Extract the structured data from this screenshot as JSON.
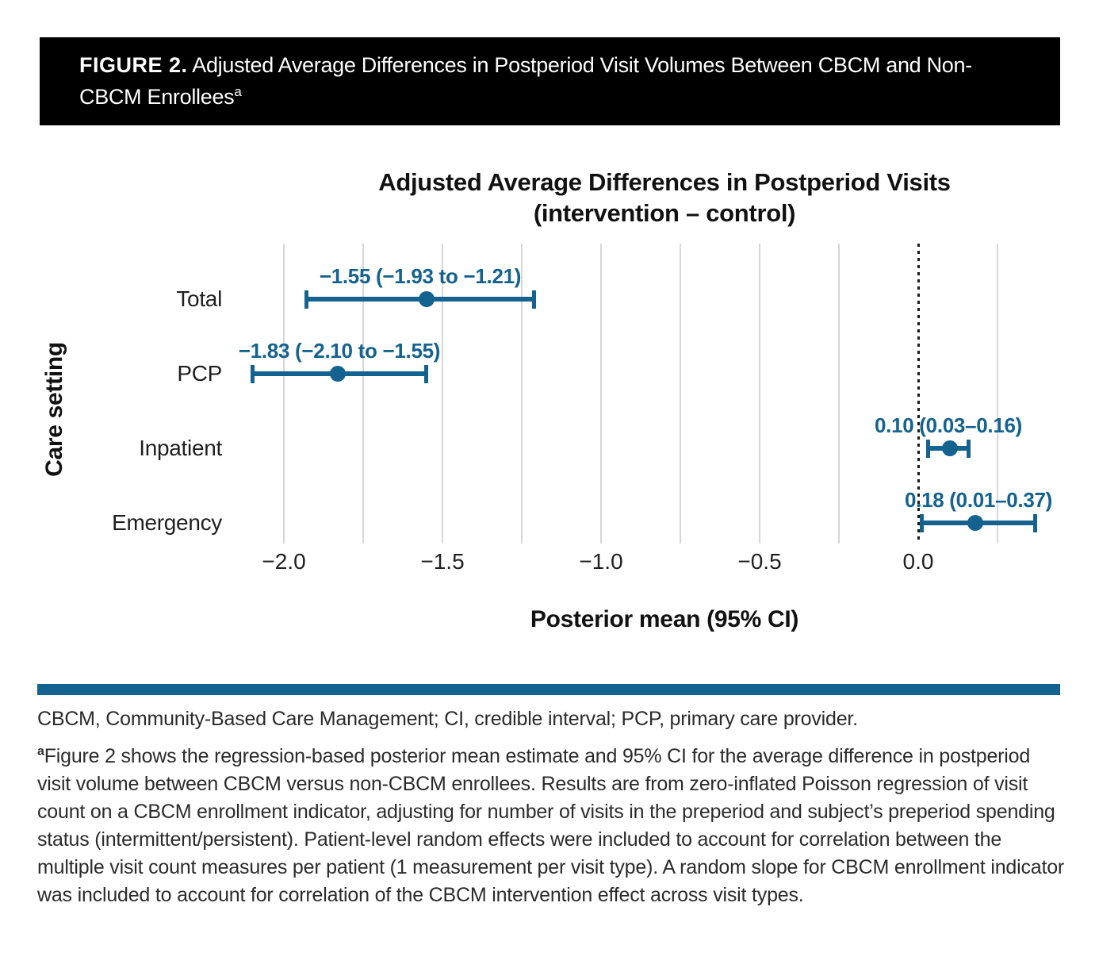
{
  "figure_header": {
    "label": "FIGURE 2.",
    "title": " Adjusted Average Differences in Postperiod Visit Volumes Between CBCM and Non-CBCM Enrollees",
    "superscript": "a"
  },
  "chart_data": {
    "type": "scatter",
    "subtype": "forest-plot-errorbar",
    "title": "Adjusted Average Differences in Postperiod Visits",
    "subtitle": "(intervention – control)",
    "xlabel": "Posterior mean (95% CI)",
    "ylabel": "Care setting",
    "categories": [
      "Total",
      "PCP",
      "Inpatient",
      "Emergency"
    ],
    "points": [
      {
        "category": "Total",
        "mean": -1.55,
        "ci_low": -1.93,
        "ci_high": -1.21,
        "label": "−1.55 (−1.93 to −1.21)"
      },
      {
        "category": "PCP",
        "mean": -1.83,
        "ci_low": -2.1,
        "ci_high": -1.55,
        "label": "−1.83 (−2.10 to −1.55)"
      },
      {
        "category": "Inpatient",
        "mean": 0.1,
        "ci_low": 0.03,
        "ci_high": 0.16,
        "label": "0.10 (0.03–0.16)"
      },
      {
        "category": "Emergency",
        "mean": 0.18,
        "ci_low": 0.01,
        "ci_high": 0.37,
        "label": "0.18 (0.01–0.37)"
      }
    ],
    "x_ticks": [
      -2.0,
      -1.5,
      -1.0,
      -0.5,
      0.0
    ],
    "x_tick_labels": [
      "−2.0",
      "−1.5",
      "−1.0",
      "−0.5",
      "0.0"
    ],
    "gridlines": [
      -2.0,
      -1.75,
      -1.5,
      -1.25,
      -1.0,
      -0.75,
      -0.5,
      -0.25,
      0.25
    ],
    "zero_line": 0.0,
    "xlim": [
      -2.25,
      0.4
    ],
    "grid": true,
    "legend": false,
    "colors": {
      "point": "#14628F",
      "ci": "#14628F",
      "value_label": "#14628F",
      "grid": "#d7d7d7",
      "zero_line": "#1a1a1a"
    }
  },
  "divider": {
    "color": "#14628F"
  },
  "footnotes": {
    "abbreviations": "CBCM, Community-Based Care Management; CI, credible interval; PCP, primary care provider.",
    "note_superscript": "a",
    "note_text": "Figure 2 shows the regression-based posterior mean estimate and 95% CI for the average difference in postperiod visit volume between CBCM versus non-CBCM enrollees. Results are from zero-inflated Poisson regression of visit count on a CBCM enrollment indicator, adjusting for number of visits in the preperiod and subject’s preperiod spending status (intermittent/persistent). Patient-level random effects were included to account for correlation between the multiple visit count measures per patient (1 measurement per visit type). A random slope for CBCM enrollment indicator was included to account for correlation of the CBCM intervention effect across visit types."
  }
}
